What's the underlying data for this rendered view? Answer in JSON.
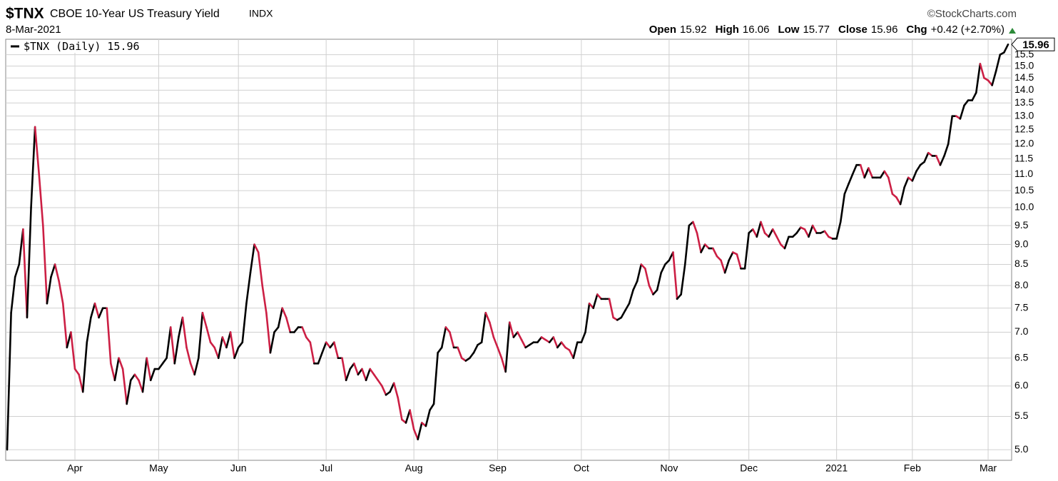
{
  "chart_data": {
    "type": "line",
    "title": "$TNX",
    "subtitle": "CBOE 10-Year US Treasury Yield",
    "exchange": "INDX",
    "source": "©StockCharts.com",
    "date": "8-Mar-2021",
    "quote": [
      {
        "label": "Open",
        "value": 15.92
      },
      {
        "label": "High",
        "value": 16.06
      },
      {
        "label": "Low",
        "value": 15.77
      },
      {
        "label": "Close",
        "value": 15.96
      },
      {
        "label": "Chg",
        "value": "+0.42 (+2.70%)"
      }
    ],
    "log_scale": true,
    "grid": true,
    "legend": "top-left",
    "ylim": [
      4.85,
      16.2
    ],
    "yticks": [
      {
        "value": 5,
        "label": "5.0"
      },
      {
        "value": 5.5,
        "label": "5.5"
      },
      {
        "value": 6,
        "label": "6.0"
      },
      {
        "value": 6.5,
        "label": "6.5"
      },
      {
        "value": 7,
        "label": "7.0"
      },
      {
        "value": 7.5,
        "label": "7.5"
      },
      {
        "value": 8,
        "label": "8.0"
      },
      {
        "value": 8.5,
        "label": "8.5"
      },
      {
        "value": 9,
        "label": "9.0"
      },
      {
        "value": 9.5,
        "label": "9.5"
      },
      {
        "value": 10,
        "label": "10.0"
      },
      {
        "value": 10.5,
        "label": "10.5"
      },
      {
        "value": 11,
        "label": "11.0"
      },
      {
        "value": 11.5,
        "label": "11.5"
      },
      {
        "value": 12,
        "label": "12.0"
      },
      {
        "value": 12.5,
        "label": "12.5"
      },
      {
        "value": 13,
        "label": "13.0"
      },
      {
        "value": 13.5,
        "label": "13.5"
      },
      {
        "value": 14,
        "label": "14.0"
      },
      {
        "value": 14.5,
        "label": "14.5"
      },
      {
        "value": 15,
        "label": "15.0"
      },
      {
        "value": 15.5,
        "label": "15.5"
      }
    ],
    "categories": [
      null,
      null,
      null,
      null,
      null,
      null,
      null,
      null,
      null,
      null,
      null,
      null,
      null,
      null,
      null,
      null,
      null,
      "Apr",
      null,
      null,
      null,
      null,
      null,
      null,
      null,
      null,
      null,
      null,
      null,
      null,
      null,
      null,
      null,
      null,
      null,
      null,
      null,
      null,
      "May",
      null,
      null,
      null,
      null,
      null,
      null,
      null,
      null,
      null,
      null,
      null,
      null,
      null,
      null,
      null,
      null,
      null,
      null,
      null,
      "Jun",
      null,
      null,
      null,
      null,
      null,
      null,
      null,
      null,
      null,
      null,
      null,
      null,
      null,
      null,
      null,
      null,
      null,
      null,
      null,
      null,
      null,
      "Jul",
      null,
      null,
      null,
      null,
      null,
      null,
      null,
      null,
      null,
      null,
      null,
      null,
      null,
      null,
      null,
      null,
      null,
      null,
      null,
      null,
      null,
      "Aug",
      null,
      null,
      null,
      null,
      null,
      null,
      null,
      null,
      null,
      null,
      null,
      null,
      null,
      null,
      null,
      null,
      null,
      null,
      null,
      null,
      "Sep",
      null,
      null,
      null,
      null,
      null,
      null,
      null,
      null,
      null,
      null,
      null,
      null,
      null,
      null,
      null,
      null,
      null,
      null,
      null,
      null,
      "Oct",
      null,
      null,
      null,
      null,
      null,
      null,
      null,
      null,
      null,
      null,
      null,
      null,
      null,
      null,
      null,
      null,
      null,
      null,
      null,
      null,
      null,
      "Nov",
      null,
      null,
      null,
      null,
      null,
      null,
      null,
      null,
      null,
      null,
      null,
      null,
      null,
      null,
      null,
      null,
      null,
      null,
      null,
      "Dec",
      null,
      null,
      null,
      null,
      null,
      null,
      null,
      null,
      null,
      null,
      null,
      null,
      null,
      null,
      null,
      null,
      null,
      null,
      null,
      null,
      null,
      "2021",
      null,
      null,
      null,
      null,
      null,
      null,
      null,
      null,
      null,
      null,
      null,
      null,
      null,
      null,
      null,
      null,
      null,
      null,
      "Feb",
      null,
      null,
      null,
      null,
      null,
      null,
      null,
      null,
      null,
      null,
      null,
      null,
      null,
      null,
      null,
      null,
      null,
      null,
      "Mar",
      null,
      null,
      null,
      null,
      null
    ],
    "series": [
      {
        "name": "$TNX (Daily)",
        "color": "#000000",
        "down_color": "#cc1f44",
        "values": [
          5.0,
          7.4,
          8.2,
          8.5,
          9.4,
          7.3,
          10.0,
          12.6,
          11.0,
          9.5,
          7.6,
          8.2,
          8.5,
          8.1,
          7.6,
          6.7,
          7.0,
          6.3,
          6.2,
          5.9,
          6.8,
          7.3,
          7.6,
          7.3,
          7.5,
          7.5,
          6.4,
          6.1,
          6.5,
          6.3,
          5.7,
          6.1,
          6.2,
          6.1,
          5.9,
          6.5,
          6.1,
          6.3,
          6.3,
          6.4,
          6.5,
          7.1,
          6.4,
          6.9,
          7.3,
          6.7,
          6.4,
          6.2,
          6.5,
          7.4,
          7.1,
          6.8,
          6.7,
          6.5,
          6.9,
          6.7,
          7.0,
          6.5,
          6.7,
          6.8,
          7.6,
          8.3,
          9.0,
          8.8,
          8.0,
          7.4,
          6.6,
          7.0,
          7.1,
          7.5,
          7.3,
          7.0,
          7.0,
          7.1,
          7.1,
          6.9,
          6.8,
          6.4,
          6.4,
          6.6,
          6.8,
          6.7,
          6.8,
          6.5,
          6.5,
          6.1,
          6.3,
          6.4,
          6.2,
          6.3,
          6.1,
          6.3,
          6.2,
          6.1,
          6.0,
          5.85,
          5.9,
          6.05,
          5.8,
          5.45,
          5.4,
          5.6,
          5.3,
          5.15,
          5.4,
          5.35,
          5.6,
          5.7,
          6.6,
          6.7,
          7.1,
          7.0,
          6.7,
          6.7,
          6.5,
          6.45,
          6.5,
          6.6,
          6.75,
          6.8,
          7.4,
          7.2,
          6.9,
          6.7,
          6.5,
          6.25,
          7.2,
          6.9,
          7.0,
          6.85,
          6.7,
          6.75,
          6.8,
          6.8,
          6.9,
          6.85,
          6.8,
          6.9,
          6.7,
          6.8,
          6.7,
          6.65,
          6.5,
          6.8,
          6.8,
          7.0,
          7.6,
          7.5,
          7.8,
          7.7,
          7.7,
          7.7,
          7.3,
          7.25,
          7.3,
          7.45,
          7.6,
          7.9,
          8.1,
          8.5,
          8.4,
          8.0,
          7.8,
          7.9,
          8.3,
          8.5,
          8.6,
          8.8,
          7.7,
          7.8,
          8.5,
          9.5,
          9.6,
          9.3,
          8.8,
          9.0,
          8.9,
          8.9,
          8.7,
          8.6,
          8.3,
          8.6,
          8.8,
          8.75,
          8.4,
          8.4,
          9.3,
          9.4,
          9.2,
          9.6,
          9.3,
          9.2,
          9.4,
          9.2,
          9.0,
          8.9,
          9.2,
          9.2,
          9.3,
          9.45,
          9.4,
          9.2,
          9.5,
          9.3,
          9.3,
          9.35,
          9.2,
          9.15,
          9.15,
          9.6,
          10.4,
          10.7,
          11.0,
          11.3,
          11.3,
          10.9,
          11.2,
          10.9,
          10.9,
          10.9,
          11.1,
          10.9,
          10.4,
          10.3,
          10.1,
          10.6,
          10.9,
          10.8,
          11.1,
          11.3,
          11.4,
          11.7,
          11.6,
          11.6,
          11.3,
          11.6,
          12.0,
          13.0,
          13.0,
          12.9,
          13.4,
          13.6,
          13.6,
          13.9,
          15.1,
          14.5,
          14.4,
          14.2,
          14.8,
          15.5,
          15.6,
          15.96
        ]
      }
    ]
  }
}
